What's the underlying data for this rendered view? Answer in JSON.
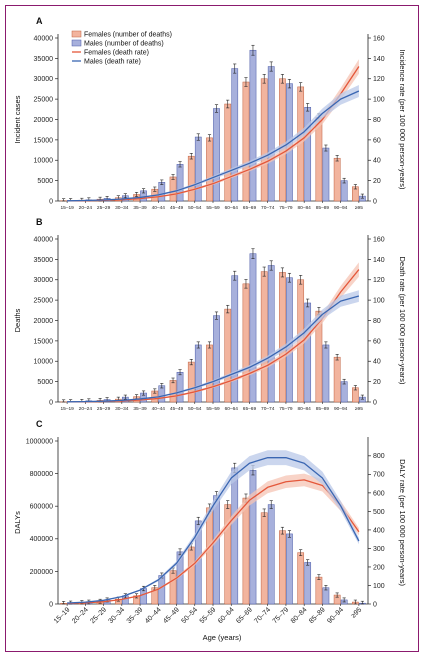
{
  "colors": {
    "female_bar": "#f2b49e",
    "female_bar_stroke": "#c0603f",
    "male_bar": "#a7b0dc",
    "male_bar_stroke": "#4a5aa8",
    "female_line": "#e4573a",
    "male_line": "#3a66b2",
    "female_band": "#f6c4b4",
    "male_band": "#b9c8e8",
    "frame": "#8b1a6e"
  },
  "shared": {
    "x_label": "Age (years)",
    "age_groups": [
      "15–19",
      "20–24",
      "25–29",
      "30–34",
      "35–39",
      "40–44",
      "45–49",
      "50–54",
      "55–59",
      "60–64",
      "65–69",
      "70–74",
      "75–79",
      "80–84",
      "85–89",
      "90–94",
      "≥95"
    ]
  },
  "chart_data": [
    {
      "type": "bar",
      "panel_label": "A",
      "ylabel": "Incident cases",
      "ylabel_right": "Incidence rate (per 100 000 person-years)",
      "ylim": [
        0,
        40000
      ],
      "yticks": [
        0,
        5000,
        10000,
        15000,
        20000,
        25000,
        30000,
        35000,
        40000
      ],
      "ylim_right": [
        0,
        160
      ],
      "yticks_right": [
        0,
        20,
        40,
        60,
        80,
        100,
        120,
        140,
        160
      ],
      "legend": [
        "Females (number of deaths)",
        "Males (number of deaths)",
        "Females (death rate)",
        "Males (death rate)"
      ],
      "legend_position": "top-left",
      "series": [
        {
          "name": "Females (number of deaths)",
          "values": [
            80,
            200,
            450,
            800,
            1600,
            2900,
            5900,
            11000,
            15500,
            23800,
            29200,
            30000,
            30000,
            28000,
            20500,
            10500,
            3500
          ]
        },
        {
          "name": "Males (number of deaths)",
          "values": [
            120,
            300,
            650,
            1300,
            2500,
            4600,
            9000,
            15700,
            22700,
            32500,
            37000,
            33000,
            28800,
            23000,
            13000,
            5000,
            1200
          ]
        }
      ],
      "rates": [
        {
          "name": "Females (death rate)",
          "values": [
            0.1,
            0.3,
            0.6,
            1.2,
            2.4,
            4.2,
            7,
            11.5,
            17,
            24,
            31,
            39,
            49,
            62,
            80,
            105,
            132
          ]
        },
        {
          "name": "Males (death rate)",
          "values": [
            0.2,
            0.5,
            1,
            2,
            3.5,
            6,
            10,
            16,
            23,
            30,
            37,
            45,
            55,
            68,
            86,
            100,
            108
          ]
        }
      ]
    },
    {
      "type": "bar",
      "panel_label": "B",
      "ylabel": "Deaths",
      "ylabel_right": "Death rate (per 100 000 person-years)",
      "ylim": [
        0,
        40000
      ],
      "yticks": [
        0,
        5000,
        10000,
        15000,
        20000,
        25000,
        30000,
        35000,
        40000
      ],
      "ylim_right": [
        0,
        160
      ],
      "yticks_right": [
        0,
        20,
        40,
        60,
        80,
        100,
        120,
        140,
        160
      ],
      "series": [
        {
          "name": "Females (number of deaths)",
          "values": [
            60,
            180,
            400,
            700,
            1300,
            2700,
            5300,
            9800,
            14000,
            22800,
            29000,
            32000,
            31800,
            30000,
            22300,
            11000,
            3500
          ]
        },
        {
          "name": "Males (number of deaths)",
          "values": [
            100,
            300,
            600,
            1200,
            2200,
            4000,
            7300,
            14000,
            21200,
            31000,
            36400,
            33500,
            30500,
            24300,
            14000,
            5000,
            1200
          ]
        }
      ],
      "rates": [
        {
          "name": "Females (death rate)",
          "values": [
            0.1,
            0.2,
            0.5,
            1,
            2,
            3.5,
            6,
            10,
            15,
            21,
            28,
            36,
            47,
            61,
            82,
            108,
            130
          ]
        },
        {
          "name": "Males (death rate)",
          "values": [
            0.2,
            0.4,
            0.8,
            1.6,
            3,
            5,
            9,
            14,
            20,
            27,
            34,
            43,
            54,
            68,
            86,
            99,
            104
          ]
        }
      ]
    },
    {
      "type": "bar",
      "panel_label": "C",
      "ylabel": "DALYs",
      "ylabel_right": "DALY rate (per 100 000 person-years)",
      "ylim": [
        0,
        1000000
      ],
      "yticks": [
        0,
        200000,
        400000,
        600000,
        800000,
        1000000
      ],
      "ylim_right": [
        0,
        880
      ],
      "yticks_right": [
        0,
        100,
        200,
        300,
        400,
        500,
        600,
        700,
        800
      ],
      "series": [
        {
          "name": "Females (number of deaths)",
          "values": [
            4000,
            9000,
            17000,
            30000,
            50000,
            100000,
            205000,
            350000,
            590000,
            610000,
            650000,
            560000,
            450000,
            315000,
            165000,
            55000,
            12000
          ]
        },
        {
          "name": "Males (number of deaths)",
          "values": [
            6000,
            12000,
            25000,
            50000,
            95000,
            175000,
            320000,
            510000,
            665000,
            835000,
            820000,
            610000,
            430000,
            255000,
            100000,
            25000,
            5000
          ]
        }
      ],
      "rates": [
        {
          "name": "Females (death rate)",
          "values": [
            3,
            6,
            12,
            25,
            45,
            80,
            140,
            220,
            330,
            450,
            560,
            630,
            660,
            670,
            640,
            530,
            390
          ]
        },
        {
          "name": "Males (death rate)",
          "values": [
            5,
            10,
            20,
            40,
            75,
            130,
            220,
            360,
            530,
            680,
            760,
            790,
            790,
            760,
            680,
            530,
            340
          ]
        }
      ]
    }
  ]
}
